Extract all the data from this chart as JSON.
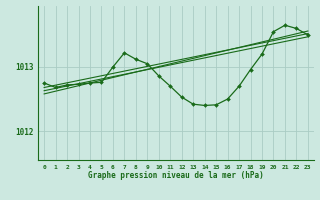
{
  "title": "Graphe pression niveau de la mer (hPa)",
  "background_color": "#cce8e0",
  "grid_color": "#aaccC4",
  "line_color": "#1a6b1a",
  "xlim": [
    -0.5,
    23.5
  ],
  "ylim": [
    1011.55,
    1013.95
  ],
  "yticks": [
    1012,
    1013
  ],
  "xticks": [
    0,
    1,
    2,
    3,
    4,
    5,
    6,
    7,
    8,
    9,
    10,
    11,
    12,
    13,
    14,
    15,
    16,
    17,
    18,
    19,
    20,
    21,
    22,
    23
  ],
  "line1_x": [
    0,
    1,
    2,
    3,
    4,
    5,
    6,
    7,
    8,
    9,
    10,
    11,
    12,
    13,
    14,
    15,
    16,
    17,
    18,
    19,
    20,
    21,
    22,
    23
  ],
  "line1_y": [
    1012.75,
    1012.68,
    1012.72,
    1012.73,
    1012.75,
    1012.76,
    1013.0,
    1013.22,
    1013.12,
    1013.05,
    1012.86,
    1012.7,
    1012.53,
    1012.42,
    1012.4,
    1012.41,
    1012.5,
    1012.7,
    1012.96,
    1013.2,
    1013.55,
    1013.65,
    1013.6,
    1013.5
  ],
  "line2_x": [
    0,
    23
  ],
  "line2_y": [
    1012.68,
    1013.52
  ],
  "line3_x": [
    0,
    23
  ],
  "line3_y": [
    1012.63,
    1013.47
  ],
  "line4_x": [
    0,
    23
  ],
  "line4_y": [
    1012.58,
    1013.56
  ],
  "ylabel_1012_pos": 1012,
  "ylabel_1013_pos": 1013
}
